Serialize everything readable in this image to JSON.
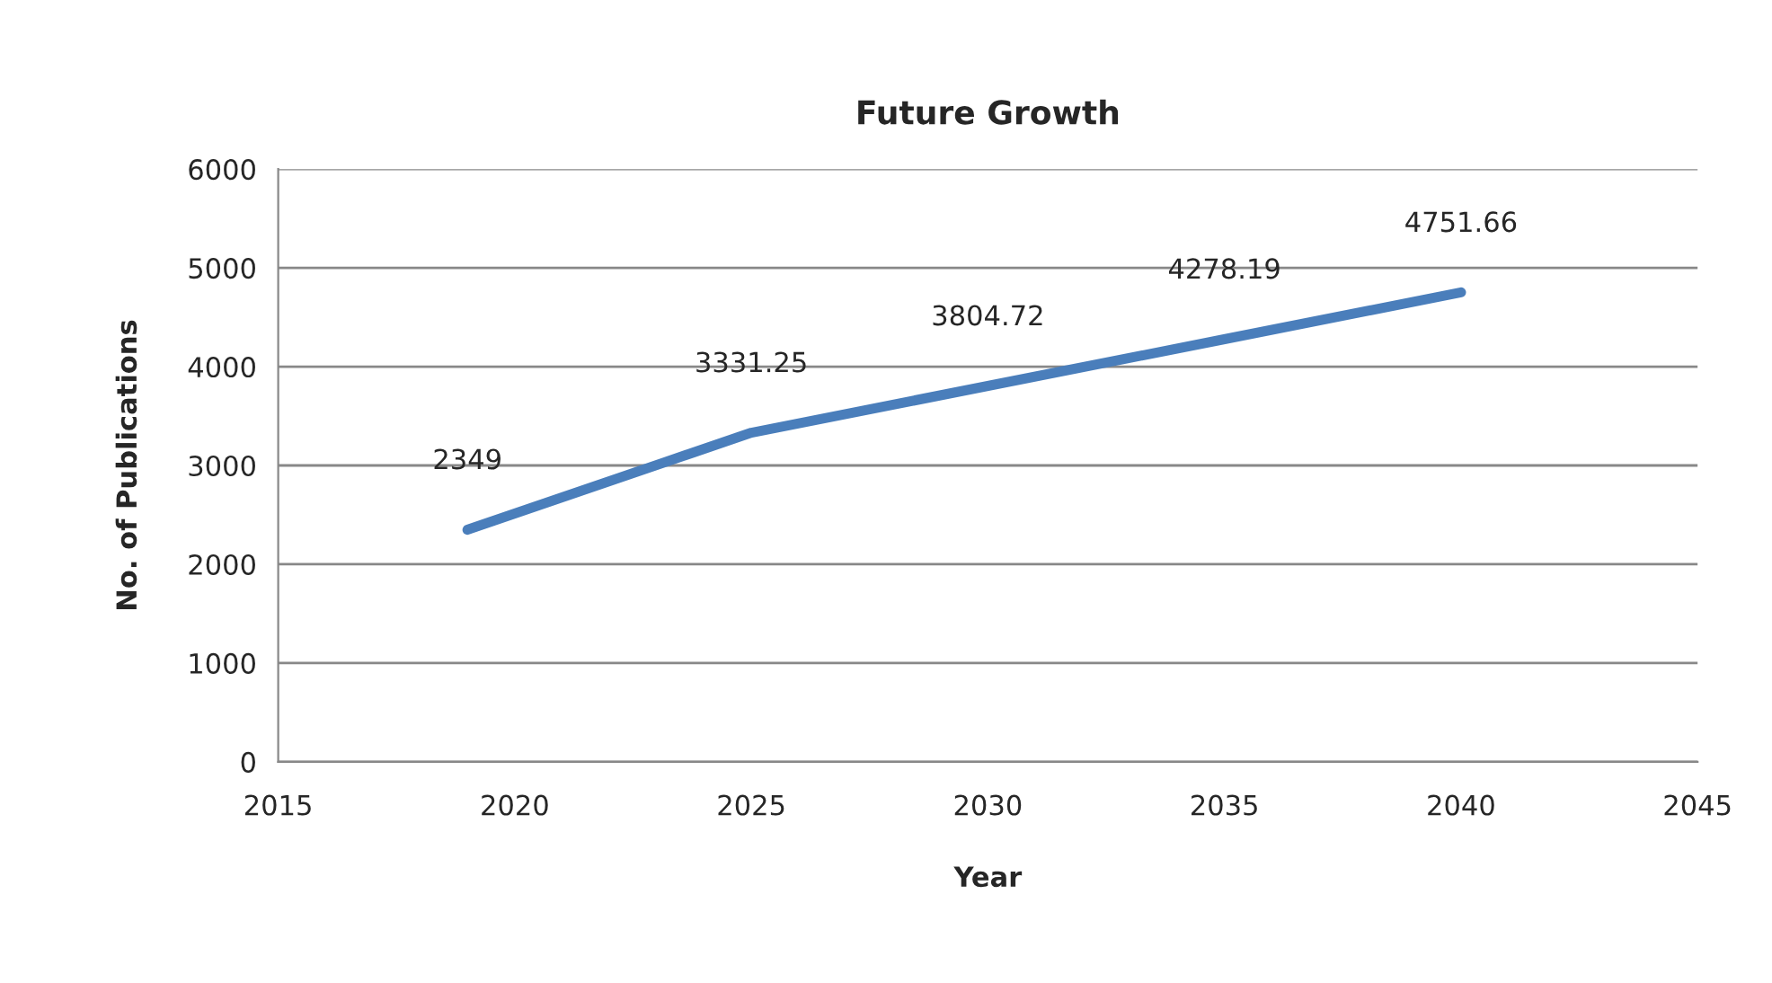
{
  "chart_data": {
    "type": "line",
    "title": "Future Growth",
    "xlabel": "Year",
    "ylabel": "No. of Publications",
    "x": [
      2019,
      2025,
      2030,
      2035,
      2040
    ],
    "series": [
      {
        "color": "#4a7ebb",
        "values": [
          2349,
          3331.25,
          3804.72,
          4278.19,
          4751.66
        ]
      }
    ],
    "xlim": [
      2015,
      2045
    ],
    "xticks": [
      2015,
      2020,
      2025,
      2030,
      2035,
      2040,
      2045
    ],
    "ylim": [
      0,
      6000
    ],
    "yticks": [
      0,
      1000,
      2000,
      3000,
      4000,
      5000,
      6000
    ],
    "grid": "y",
    "legend": false,
    "marker": "none",
    "line_style": "solid",
    "data_labels": true
  }
}
